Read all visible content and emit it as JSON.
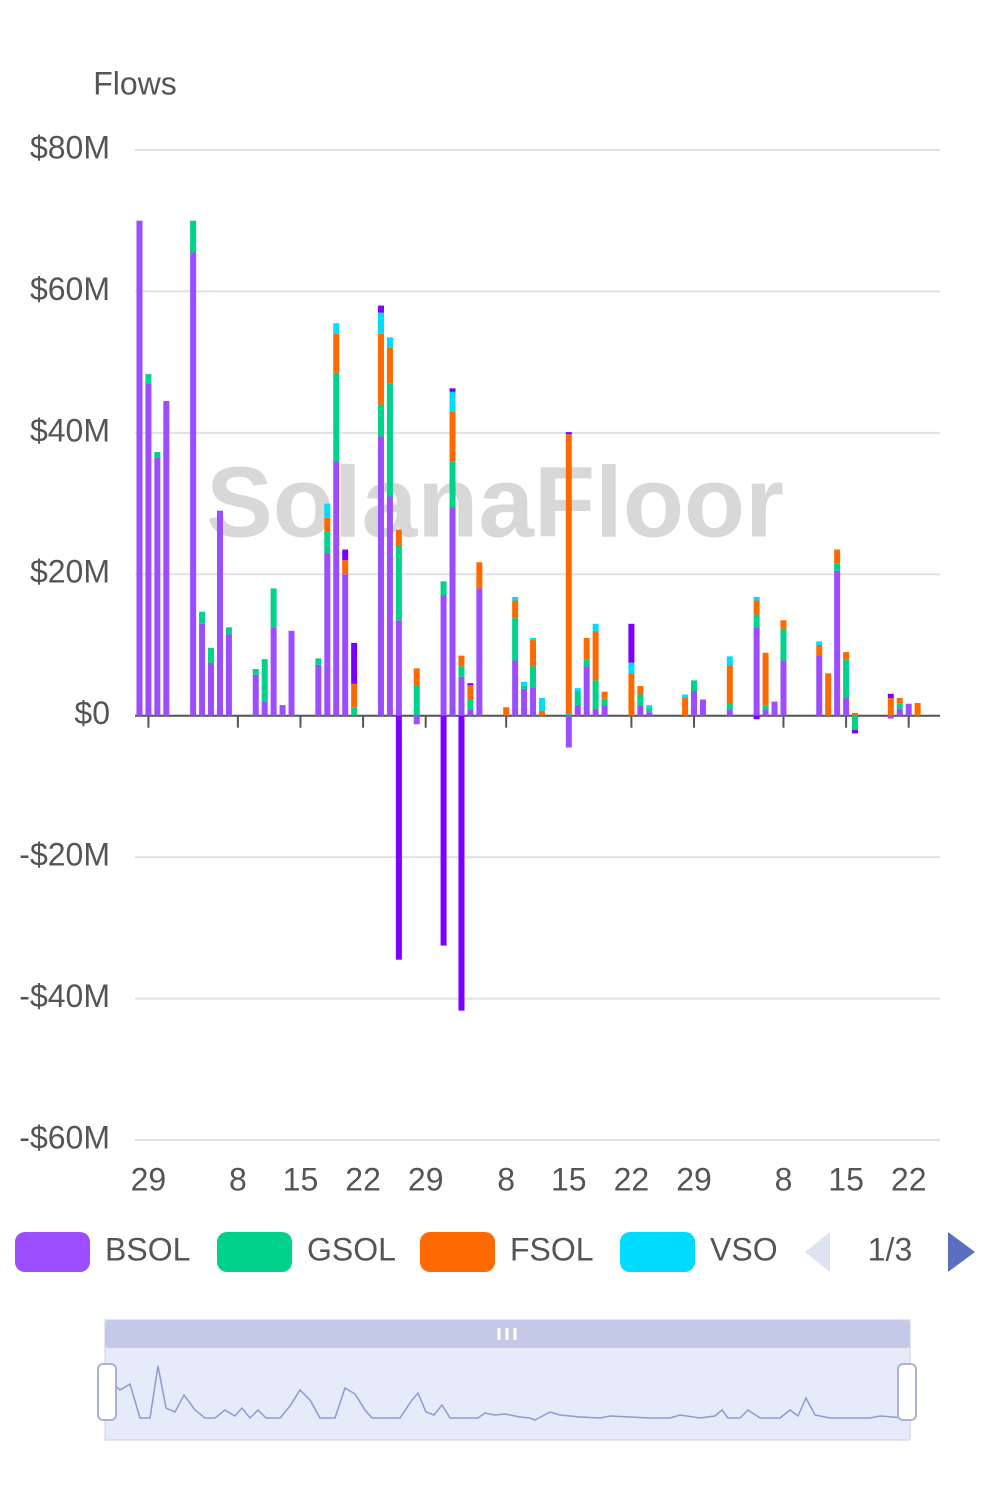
{
  "chart_data": {
    "type": "bar",
    "stacked": true,
    "title": "Flows",
    "watermark": "SolanaFloor",
    "legend_page": "1/3",
    "categories": [
      null,
      "29",
      null,
      null,
      null,
      null,
      null,
      null,
      null,
      null,
      null,
      "8",
      null,
      null,
      null,
      null,
      null,
      null,
      "15",
      null,
      null,
      null,
      null,
      null,
      null,
      "22",
      null,
      null,
      null,
      null,
      null,
      null,
      "29",
      null,
      null,
      null,
      null,
      null,
      null,
      null,
      null,
      "8",
      null,
      null,
      null,
      null,
      null,
      null,
      "15",
      null,
      null,
      null,
      null,
      null,
      null,
      "22",
      null,
      null,
      null,
      null,
      null,
      null,
      "29",
      null,
      null,
      null,
      null,
      null,
      null,
      null,
      null,
      null,
      "8",
      null,
      null,
      null,
      null,
      null,
      null,
      "15",
      null,
      null,
      null,
      null,
      null,
      null,
      "22",
      null,
      null,
      null
    ],
    "ylim": [
      -60,
      80
    ],
    "yticks": [
      {
        "value": -60,
        "label": "-$60M"
      },
      {
        "value": -40,
        "label": "-$40M"
      },
      {
        "value": -20,
        "label": "-$20M"
      },
      {
        "value": 0,
        "label": "$0"
      },
      {
        "value": 20,
        "label": "$20M"
      },
      {
        "value": 40,
        "label": "$40M"
      },
      {
        "value": 60,
        "label": "$60M"
      },
      {
        "value": 80,
        "label": "$80M"
      }
    ],
    "grid": true,
    "series": [
      {
        "name": "BSOL",
        "color": "#9b4dff",
        "values": [
          70,
          47,
          36.5,
          44.5,
          null,
          null,
          65.5,
          13,
          7.5,
          29,
          11.5,
          null,
          null,
          5.8,
          2,
          12.5,
          1.5,
          12,
          null,
          null,
          7.2,
          23,
          36,
          20,
          null,
          null,
          null,
          39.5,
          31,
          13.5,
          null,
          -1.2,
          null,
          null,
          17,
          29.5,
          5.5,
          0.8,
          18,
          null,
          null,
          null,
          7.8,
          3.8,
          4,
          null,
          null,
          null,
          -4.5,
          1.5,
          7,
          1,
          1.5,
          null,
          null,
          null,
          1.5,
          0.5,
          null,
          null,
          null,
          null,
          3.5,
          2.3,
          null,
          null,
          0.8,
          null,
          null,
          12.5,
          0.8,
          2,
          7.8,
          null,
          null,
          null,
          8.5,
          null,
          20.5,
          2.5,
          null,
          null,
          null,
          null,
          -0.4,
          1,
          1.7,
          null,
          null,
          null
        ]
      },
      {
        "name": "GSOL",
        "color": "#00d18b",
        "values": [
          null,
          1.3,
          0.8,
          null,
          null,
          null,
          4.5,
          1.7,
          2.1,
          null,
          1,
          null,
          null,
          0.8,
          6,
          5.5,
          null,
          null,
          null,
          null,
          0.9,
          3,
          12.5,
          null,
          1.2,
          null,
          null,
          4.5,
          16,
          10.5,
          null,
          4.2,
          null,
          null,
          2,
          6.5,
          1.5,
          1.5,
          null,
          null,
          null,
          null,
          6,
          0.5,
          3,
          null,
          null,
          null,
          0.3,
          2,
          1,
          4,
          0.9,
          null,
          null,
          null,
          1.5,
          0.6,
          null,
          null,
          null,
          null,
          1.5,
          null,
          null,
          null,
          1,
          null,
          null,
          1.8,
          0.6,
          null,
          4.5,
          null,
          null,
          null,
          null,
          null,
          1,
          5.5,
          -2,
          null,
          null,
          null,
          null,
          0.7,
          null,
          null,
          null,
          null
        ]
      },
      {
        "name": "FSOL",
        "color": "#ff6a00",
        "values": [
          null,
          null,
          null,
          null,
          null,
          null,
          null,
          null,
          null,
          null,
          null,
          null,
          null,
          null,
          null,
          null,
          null,
          null,
          null,
          null,
          null,
          2,
          5.5,
          2,
          3.3,
          null,
          null,
          10,
          5,
          2.3,
          null,
          2.5,
          null,
          null,
          null,
          7,
          1.5,
          2,
          3.7,
          null,
          null,
          1.2,
          2.5,
          null,
          3.7,
          0.7,
          null,
          null,
          39.5,
          null,
          3,
          7,
          1,
          null,
          null,
          6,
          1.2,
          null,
          null,
          null,
          null,
          2.5,
          null,
          null,
          null,
          null,
          5.3,
          null,
          null,
          2,
          7.5,
          null,
          1.2,
          null,
          null,
          null,
          1.5,
          6,
          2,
          1,
          0.4,
          null,
          null,
          null,
          2.5,
          0.8,
          null,
          1.8,
          null,
          null
        ]
      },
      {
        "name": "VSO",
        "color": "#00dcff",
        "values": [
          null,
          null,
          null,
          null,
          null,
          null,
          null,
          null,
          null,
          null,
          null,
          null,
          null,
          null,
          null,
          null,
          null,
          null,
          null,
          null,
          null,
          2,
          1.5,
          null,
          null,
          null,
          null,
          3,
          1.5,
          null,
          null,
          null,
          null,
          null,
          null,
          2.8,
          null,
          null,
          null,
          null,
          null,
          null,
          0.5,
          0.5,
          0.3,
          1.8,
          null,
          null,
          null,
          0.4,
          null,
          1,
          null,
          null,
          null,
          1.5,
          null,
          0.4,
          null,
          null,
          null,
          0.5,
          null,
          null,
          null,
          null,
          1.3,
          null,
          null,
          0.5,
          null,
          null,
          null,
          null,
          null,
          null,
          0.5,
          null,
          null,
          null,
          null,
          null,
          null,
          null,
          null,
          null,
          null,
          null,
          null,
          null
        ]
      },
      {
        "color": "#7a00ff",
        "values": [
          null,
          null,
          null,
          null,
          null,
          null,
          null,
          null,
          null,
          null,
          null,
          null,
          null,
          null,
          null,
          null,
          null,
          null,
          null,
          null,
          null,
          null,
          null,
          1.5,
          5.8,
          null,
          null,
          1,
          null,
          -34.5,
          null,
          null,
          null,
          null,
          -32.5,
          0.5,
          -41.7,
          0.3,
          null,
          null,
          null,
          null,
          null,
          null,
          null,
          null,
          null,
          null,
          0.3,
          null,
          null,
          null,
          null,
          null,
          null,
          5.5,
          null,
          null,
          null,
          null,
          null,
          null,
          null,
          null,
          null,
          null,
          null,
          null,
          null,
          -0.5,
          null,
          null,
          null,
          null,
          null,
          null,
          null,
          null,
          null,
          null,
          -0.5,
          null,
          null,
          null,
          0.6,
          null,
          null,
          null,
          null,
          null
        ]
      }
    ]
  }
}
